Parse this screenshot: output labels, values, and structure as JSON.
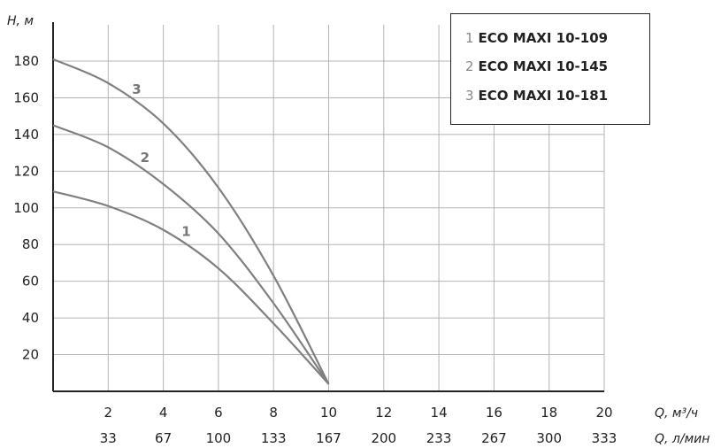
{
  "chart_data": {
    "type": "line",
    "xlabel": "Q, м³/ч",
    "xlabel2": "Q, л/мин",
    "ylabel": "H, м",
    "xlim": [
      0,
      20
    ],
    "ylim": [
      0,
      190
    ],
    "x_ticks": [
      2,
      4,
      6,
      8,
      10,
      12,
      14,
      16,
      18,
      20
    ],
    "x2_ticks": [
      "33",
      "67",
      "100",
      "133",
      "167",
      "200",
      "233",
      "267",
      "300",
      "333"
    ],
    "y_ticks": [
      20,
      40,
      60,
      80,
      100,
      120,
      140,
      160,
      180
    ],
    "grid": true,
    "series": [
      {
        "name": "ECO MAXI 10-109",
        "label": "1",
        "x": [
          0,
          2,
          4,
          6,
          8,
          10
        ],
        "y": [
          109,
          101,
          88,
          67,
          37,
          4
        ]
      },
      {
        "name": "ECO MAXI 10-145",
        "label": "2",
        "x": [
          0,
          2,
          4,
          6,
          8,
          10
        ],
        "y": [
          145,
          133,
          113,
          86,
          48,
          4
        ]
      },
      {
        "name": "ECO MAXI 10-181",
        "label": "3",
        "x": [
          0,
          2,
          4,
          6,
          8,
          10
        ],
        "y": [
          181,
          168,
          146,
          111,
          63,
          4
        ]
      }
    ],
    "colors": {
      "curve": "#808080",
      "grid": "#b4b4b4",
      "axis": "#222222",
      "label": "#777777"
    }
  }
}
